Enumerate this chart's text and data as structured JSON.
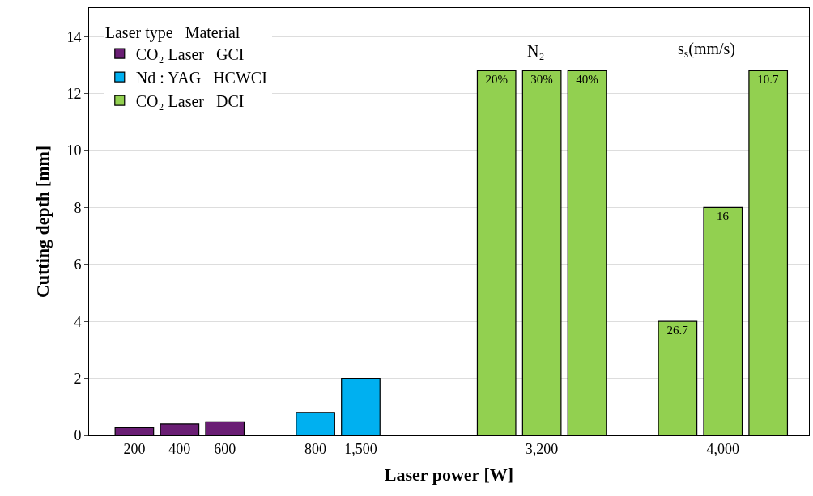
{
  "chart_data": {
    "type": "bar",
    "xlabel": "Laser power [W]",
    "ylabel": "Cutting depth [mm]",
    "legend_title": "Laser type   Material",
    "categories": [
      "200",
      "400",
      "600",
      null,
      "800",
      "1,500",
      null,
      null,
      null,
      "3,200",
      null,
      null,
      null,
      "4,000",
      null
    ],
    "series": [
      {
        "name": "CO₂ Laser   GCI",
        "color": "#6a1e74",
        "values": [
          0.27,
          0.4,
          0.47,
          null,
          null,
          null,
          null,
          null,
          null,
          null,
          null,
          null,
          null,
          null,
          null
        ]
      },
      {
        "name": "Nd : YAG   HCWCI",
        "color": "#00b0f0",
        "values": [
          null,
          null,
          null,
          null,
          0.8,
          2.0,
          null,
          null,
          null,
          null,
          null,
          null,
          null,
          null,
          null
        ]
      },
      {
        "name": "CO₂ Laser   DCI",
        "color": "#92d050",
        "values": [
          null,
          null,
          null,
          null,
          null,
          null,
          null,
          null,
          12.8,
          12.8,
          12.8,
          null,
          4,
          8,
          12.8
        ]
      }
    ],
    "ylim": [
      0,
      15
    ],
    "yticks": [
      0,
      2,
      4,
      6,
      8,
      10,
      12,
      14
    ],
    "grid": "y",
    "legend": "top left",
    "annotations": [
      "N₂",
      "s$_{s}$(mm/s)",
      "20%",
      "30%",
      "40%",
      "26.7",
      "16",
      "10.7"
    ]
  }
}
